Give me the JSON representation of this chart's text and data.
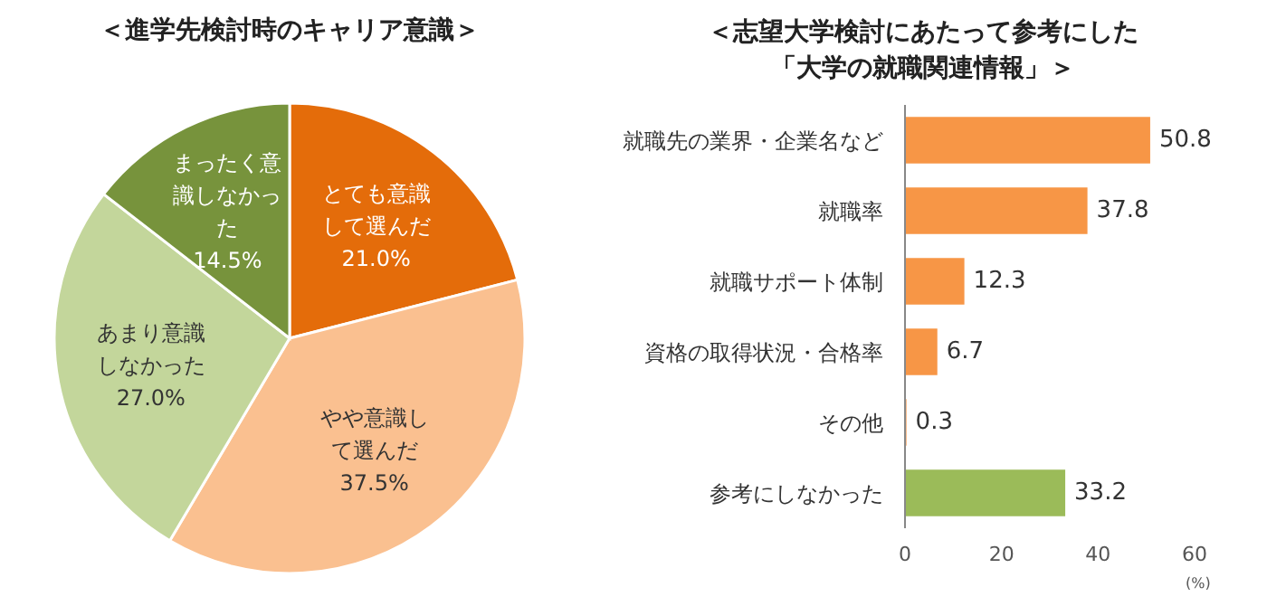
{
  "chart_data": [
    {
      "type": "pie",
      "title": "＜進学先検討時のキャリア意識＞",
      "categories": [
        "とても意識して選んだ",
        "やや意識して選んだ",
        "あまり意識しなかった",
        "まったく意識しなかった"
      ],
      "values": [
        21.0,
        37.5,
        27.0,
        14.5
      ],
      "value_labels": [
        "21.0%",
        "37.5%",
        "27.0%",
        "14.5%"
      ],
      "colors": [
        "#e46c0a",
        "#fac090",
        "#c3d69b",
        "#77933c"
      ]
    },
    {
      "type": "bar",
      "orientation": "horizontal",
      "title": "＜志望大学検討にあたって参考にした「大学の就職関連情報」＞",
      "categories": [
        "就職先の業界・企業名など",
        "就職率",
        "就職サポート体制",
        "資格の取得状況・合格率",
        "その他",
        "参考にしなかった"
      ],
      "values": [
        50.8,
        37.8,
        12.3,
        6.7,
        0.3,
        33.2
      ],
      "colors": [
        "#f79646",
        "#f79646",
        "#f79646",
        "#f79646",
        "#f79646",
        "#9bbb59"
      ],
      "xlim": [
        0,
        60
      ],
      "xticks": [
        0,
        20,
        40,
        60
      ],
      "xlabel": "(%)",
      "data_labels": true
    }
  ]
}
